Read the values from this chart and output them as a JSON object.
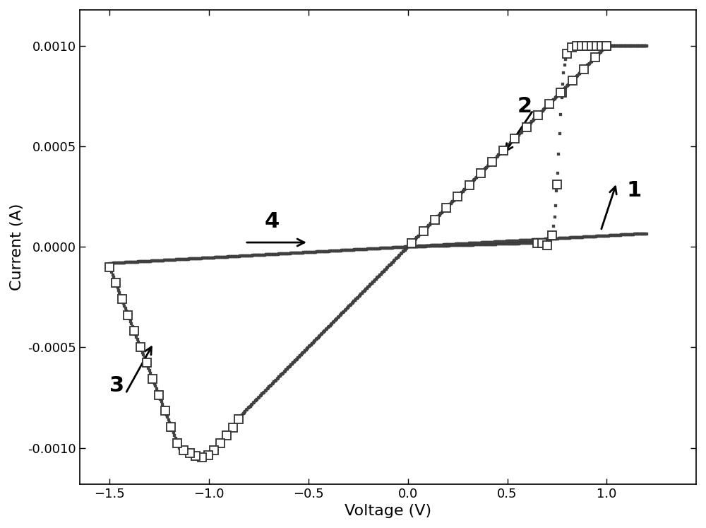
{
  "xlabel": "Voltage (V)",
  "ylabel": "Current (A)",
  "xlim": [
    -1.65,
    1.45
  ],
  "ylim": [
    -0.00118,
    0.00118
  ],
  "xticks": [
    -1.5,
    -1.0,
    -0.5,
    0.0,
    0.5,
    1.0
  ],
  "yticks": [
    -0.001,
    -0.0005,
    0.0,
    0.0005,
    0.001
  ],
  "bg_color": "#ffffff",
  "xlabel_fontsize": 16,
  "ylabel_fontsize": 16,
  "tick_fontsize": 13,
  "annotation_fontsize": 22
}
